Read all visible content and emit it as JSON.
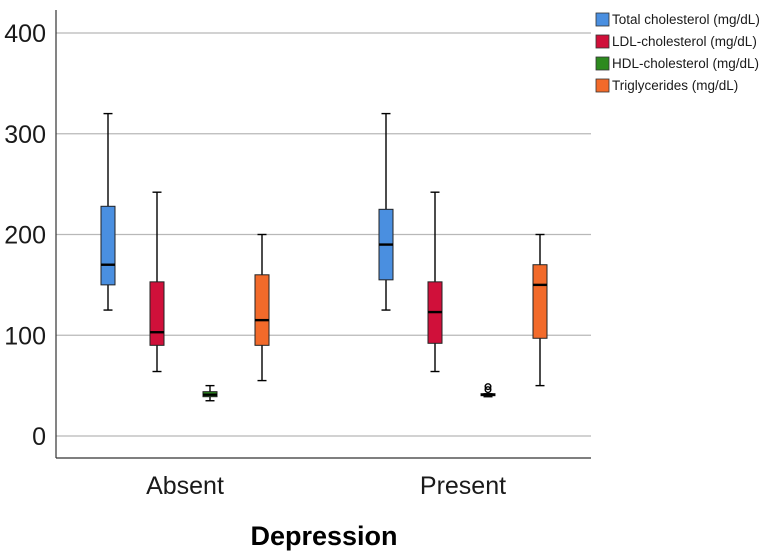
{
  "chart_data": {
    "type": "boxplot",
    "title": "",
    "xlabel": "Depression",
    "ylabel": "",
    "ylim": [
      -22,
      425
    ],
    "yticks": [
      0,
      100,
      200,
      300,
      400
    ],
    "grid": true,
    "legend_position": "top-right",
    "categories": [
      "Absent",
      "Present"
    ],
    "series": [
      {
        "name": "Total cholesterol (mg/dL)",
        "color": "#4a8fe0",
        "boxes": [
          {
            "min": 125,
            "q1": 150,
            "median": 170,
            "q3": 228,
            "max": 320,
            "outliers": []
          },
          {
            "min": 125,
            "q1": 155,
            "median": 190,
            "q3": 225,
            "max": 320,
            "outliers": []
          }
        ]
      },
      {
        "name": "LDL-cholesterol (mg/dL)",
        "color": "#d0103a",
        "boxes": [
          {
            "min": 64,
            "q1": 90,
            "median": 103,
            "q3": 153,
            "max": 242,
            "outliers": []
          },
          {
            "min": 64,
            "q1": 92,
            "median": 123,
            "q3": 153,
            "max": 242,
            "outliers": []
          }
        ]
      },
      {
        "name": "HDL-cholesterol (mg/dL)",
        "color": "#2d8a1e",
        "boxes": [
          {
            "min": 35,
            "q1": 39,
            "median": 41,
            "q3": 44,
            "max": 50,
            "outliers": []
          },
          {
            "min": 39,
            "q1": 40,
            "median": 41,
            "q3": 42,
            "max": 42,
            "outliers": [
              46,
              49
            ]
          }
        ]
      },
      {
        "name": "Triglycerides (mg/dL)",
        "color": "#f26a2a",
        "boxes": [
          {
            "min": 55,
            "q1": 90,
            "median": 115,
            "q3": 160,
            "max": 200,
            "outliers": []
          },
          {
            "min": 50,
            "q1": 97,
            "median": 150,
            "q3": 170,
            "max": 200,
            "outliers": []
          }
        ]
      }
    ]
  }
}
